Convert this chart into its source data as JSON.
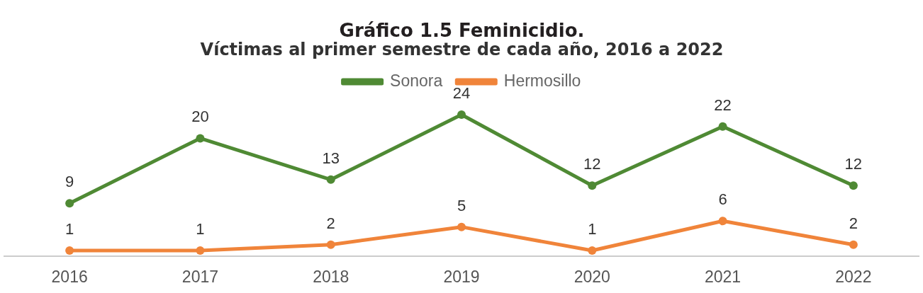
{
  "chart_data": {
    "type": "line",
    "title": "Gráfico 1.5 Feminicidio.",
    "subtitle": "Víctimas al primer semestre de cada año, 2016 a 2022",
    "categories": [
      "2016",
      "2017",
      "2018",
      "2019",
      "2020",
      "2021",
      "2022"
    ],
    "series": [
      {
        "name": "Sonora",
        "color": "#4f8a34",
        "values": [
          9,
          20,
          13,
          24,
          12,
          22,
          12
        ]
      },
      {
        "name": "Hermosillo",
        "color": "#f0843a",
        "values": [
          1,
          1,
          2,
          5,
          1,
          6,
          2
        ]
      }
    ],
    "data_labels": true,
    "legend": "top",
    "marker": "circle",
    "tick_labels": "x"
  }
}
